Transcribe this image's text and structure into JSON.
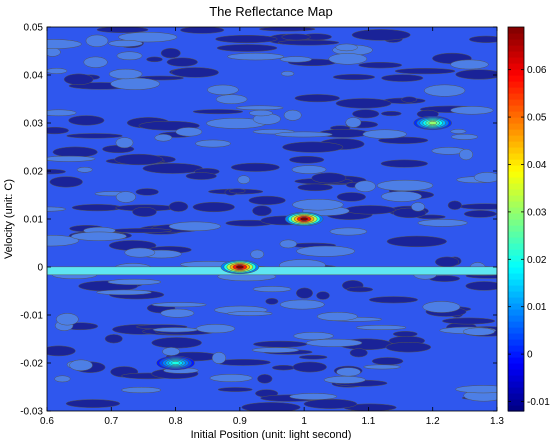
{
  "chart_data": {
    "type": "heatmap",
    "title": "The Reflectance Map",
    "xlabel": "Initial Position (unit: light second)",
    "ylabel": "Velocity (unit: C)",
    "xlim": [
      0.6,
      1.3
    ],
    "ylim": [
      -0.03,
      0.05
    ],
    "xticks": [
      "0.6",
      "0.7",
      "0.8",
      "0.9",
      "1",
      "1.1",
      "1.2",
      "1.3"
    ],
    "yticks": [
      "-0.03",
      "-0.02",
      "-0.01",
      "0",
      "0.01",
      "0.02",
      "0.03",
      "0.04",
      "0.05"
    ],
    "colorbar": {
      "range": [
        -0.012,
        0.069
      ],
      "ticks": [
        "-0.01",
        "0",
        "0.01",
        "0.02",
        "0.03",
        "0.04",
        "0.05",
        "0.06"
      ],
      "colormap": "jet"
    },
    "background_value": -0.004,
    "peaks": [
      {
        "x": 0.9,
        "y": 0.0,
        "value": 0.069
      },
      {
        "x": 1.0,
        "y": 0.01,
        "value": 0.069
      },
      {
        "x": 1.2,
        "y": 0.03,
        "value": 0.03
      },
      {
        "x": 0.8,
        "y": -0.02,
        "value": 0.02
      }
    ],
    "ridge": {
      "y": -0.0008,
      "value": 0.015
    },
    "grid": false,
    "colors": {
      "background": "#2f57ee",
      "dark_patch": "#1a2398",
      "light_patch": "#4d7fe6",
      "ridge": "#5fe6f2",
      "contour_line": "#555555"
    }
  }
}
